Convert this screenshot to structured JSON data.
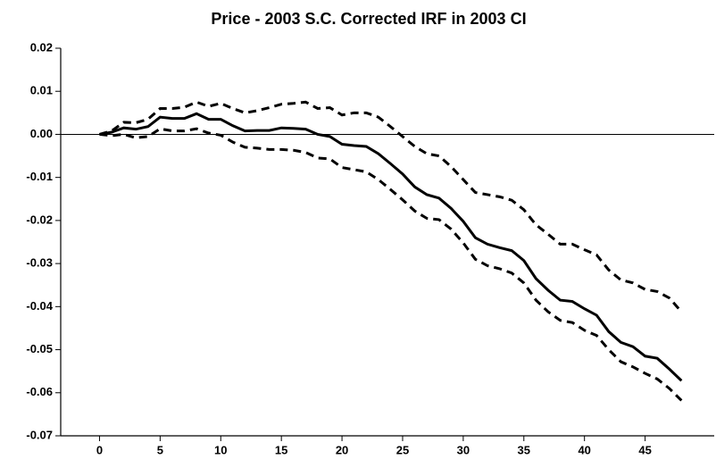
{
  "chart_data": {
    "type": "line",
    "title": "Price - 2003 S.C. Corrected IRF in 2003 CI",
    "x": [
      0,
      1,
      2,
      3,
      4,
      5,
      6,
      7,
      8,
      9,
      10,
      11,
      12,
      13,
      14,
      15,
      16,
      17,
      18,
      19,
      20,
      21,
      22,
      23,
      24,
      25,
      26,
      27,
      28,
      29,
      30,
      31,
      32,
      33,
      34,
      35,
      36,
      37,
      38,
      39,
      40,
      41,
      42,
      43,
      44,
      45,
      46,
      47,
      48
    ],
    "series": [
      {
        "color": "#000000",
        "style": "solid",
        "values": [
          0,
          0.0005,
          0.0015,
          0.0012,
          0.0018,
          0.004,
          0.0037,
          0.0037,
          0.0048,
          0.0035,
          0.0035,
          0.002,
          0.0008,
          0.0009,
          0.0009,
          0.0015,
          0.0014,
          0.0012,
          0.0,
          -0.0005,
          -0.0023,
          -0.0026,
          -0.0028,
          -0.0045,
          -0.0068,
          -0.0092,
          -0.0122,
          -0.014,
          -0.0148,
          -0.0172,
          -0.0202,
          -0.024,
          -0.0255,
          -0.0263,
          -0.027,
          -0.0293,
          -0.0335,
          -0.0362,
          -0.0385,
          -0.0388,
          -0.0405,
          -0.042,
          -0.0458,
          -0.0483,
          -0.0493,
          -0.0515,
          -0.052,
          -0.0545,
          -0.0572
        ]
      },
      {
        "color": "#000000",
        "style": "dashed",
        "values": [
          0,
          0.0008,
          0.0028,
          0.0027,
          0.0035,
          0.006,
          0.006,
          0.0063,
          0.0075,
          0.0065,
          0.0072,
          0.006,
          0.005,
          0.0055,
          0.0062,
          0.007,
          0.0072,
          0.0075,
          0.006,
          0.0062,
          0.0045,
          0.005,
          0.005,
          0.004,
          0.0018,
          -0.0005,
          -0.0028,
          -0.0045,
          -0.005,
          -0.0075,
          -0.0105,
          -0.0135,
          -0.014,
          -0.0145,
          -0.0153,
          -0.0175,
          -0.021,
          -0.0232,
          -0.0255,
          -0.0255,
          -0.0268,
          -0.028,
          -0.0315,
          -0.0338,
          -0.0345,
          -0.036,
          -0.0365,
          -0.038,
          -0.0412
        ]
      },
      {
        "color": "#000000",
        "style": "dashed",
        "values": [
          0,
          -0.0003,
          0.0,
          -0.0008,
          -0.0005,
          0.0013,
          0.0008,
          0.0008,
          0.0013,
          0.0003,
          -0.0002,
          -0.0018,
          -0.003,
          -0.0032,
          -0.0035,
          -0.0035,
          -0.0037,
          -0.0042,
          -0.0055,
          -0.0057,
          -0.0077,
          -0.0082,
          -0.0087,
          -0.0105,
          -0.0128,
          -0.0152,
          -0.0178,
          -0.0195,
          -0.0198,
          -0.022,
          -0.0252,
          -0.029,
          -0.0305,
          -0.0312,
          -0.0322,
          -0.0345,
          -0.0385,
          -0.0412,
          -0.0432,
          -0.0437,
          -0.0455,
          -0.0467,
          -0.05,
          -0.0528,
          -0.054,
          -0.0555,
          -0.0568,
          -0.059,
          -0.0618
        ]
      }
    ],
    "xlim": [
      -3.2,
      50.7
    ],
    "xticks": [
      0,
      5,
      10,
      15,
      20,
      25,
      30,
      35,
      40,
      45
    ],
    "ylim": [
      -0.07,
      0.02
    ],
    "yticks": [
      0.02,
      0.01,
      {
        "value": 0,
        "label": "0.00"
      },
      -0.01,
      -0.02,
      -0.03,
      -0.04,
      -0.05,
      -0.06,
      -0.07
    ],
    "hline": 0,
    "grid": false
  }
}
